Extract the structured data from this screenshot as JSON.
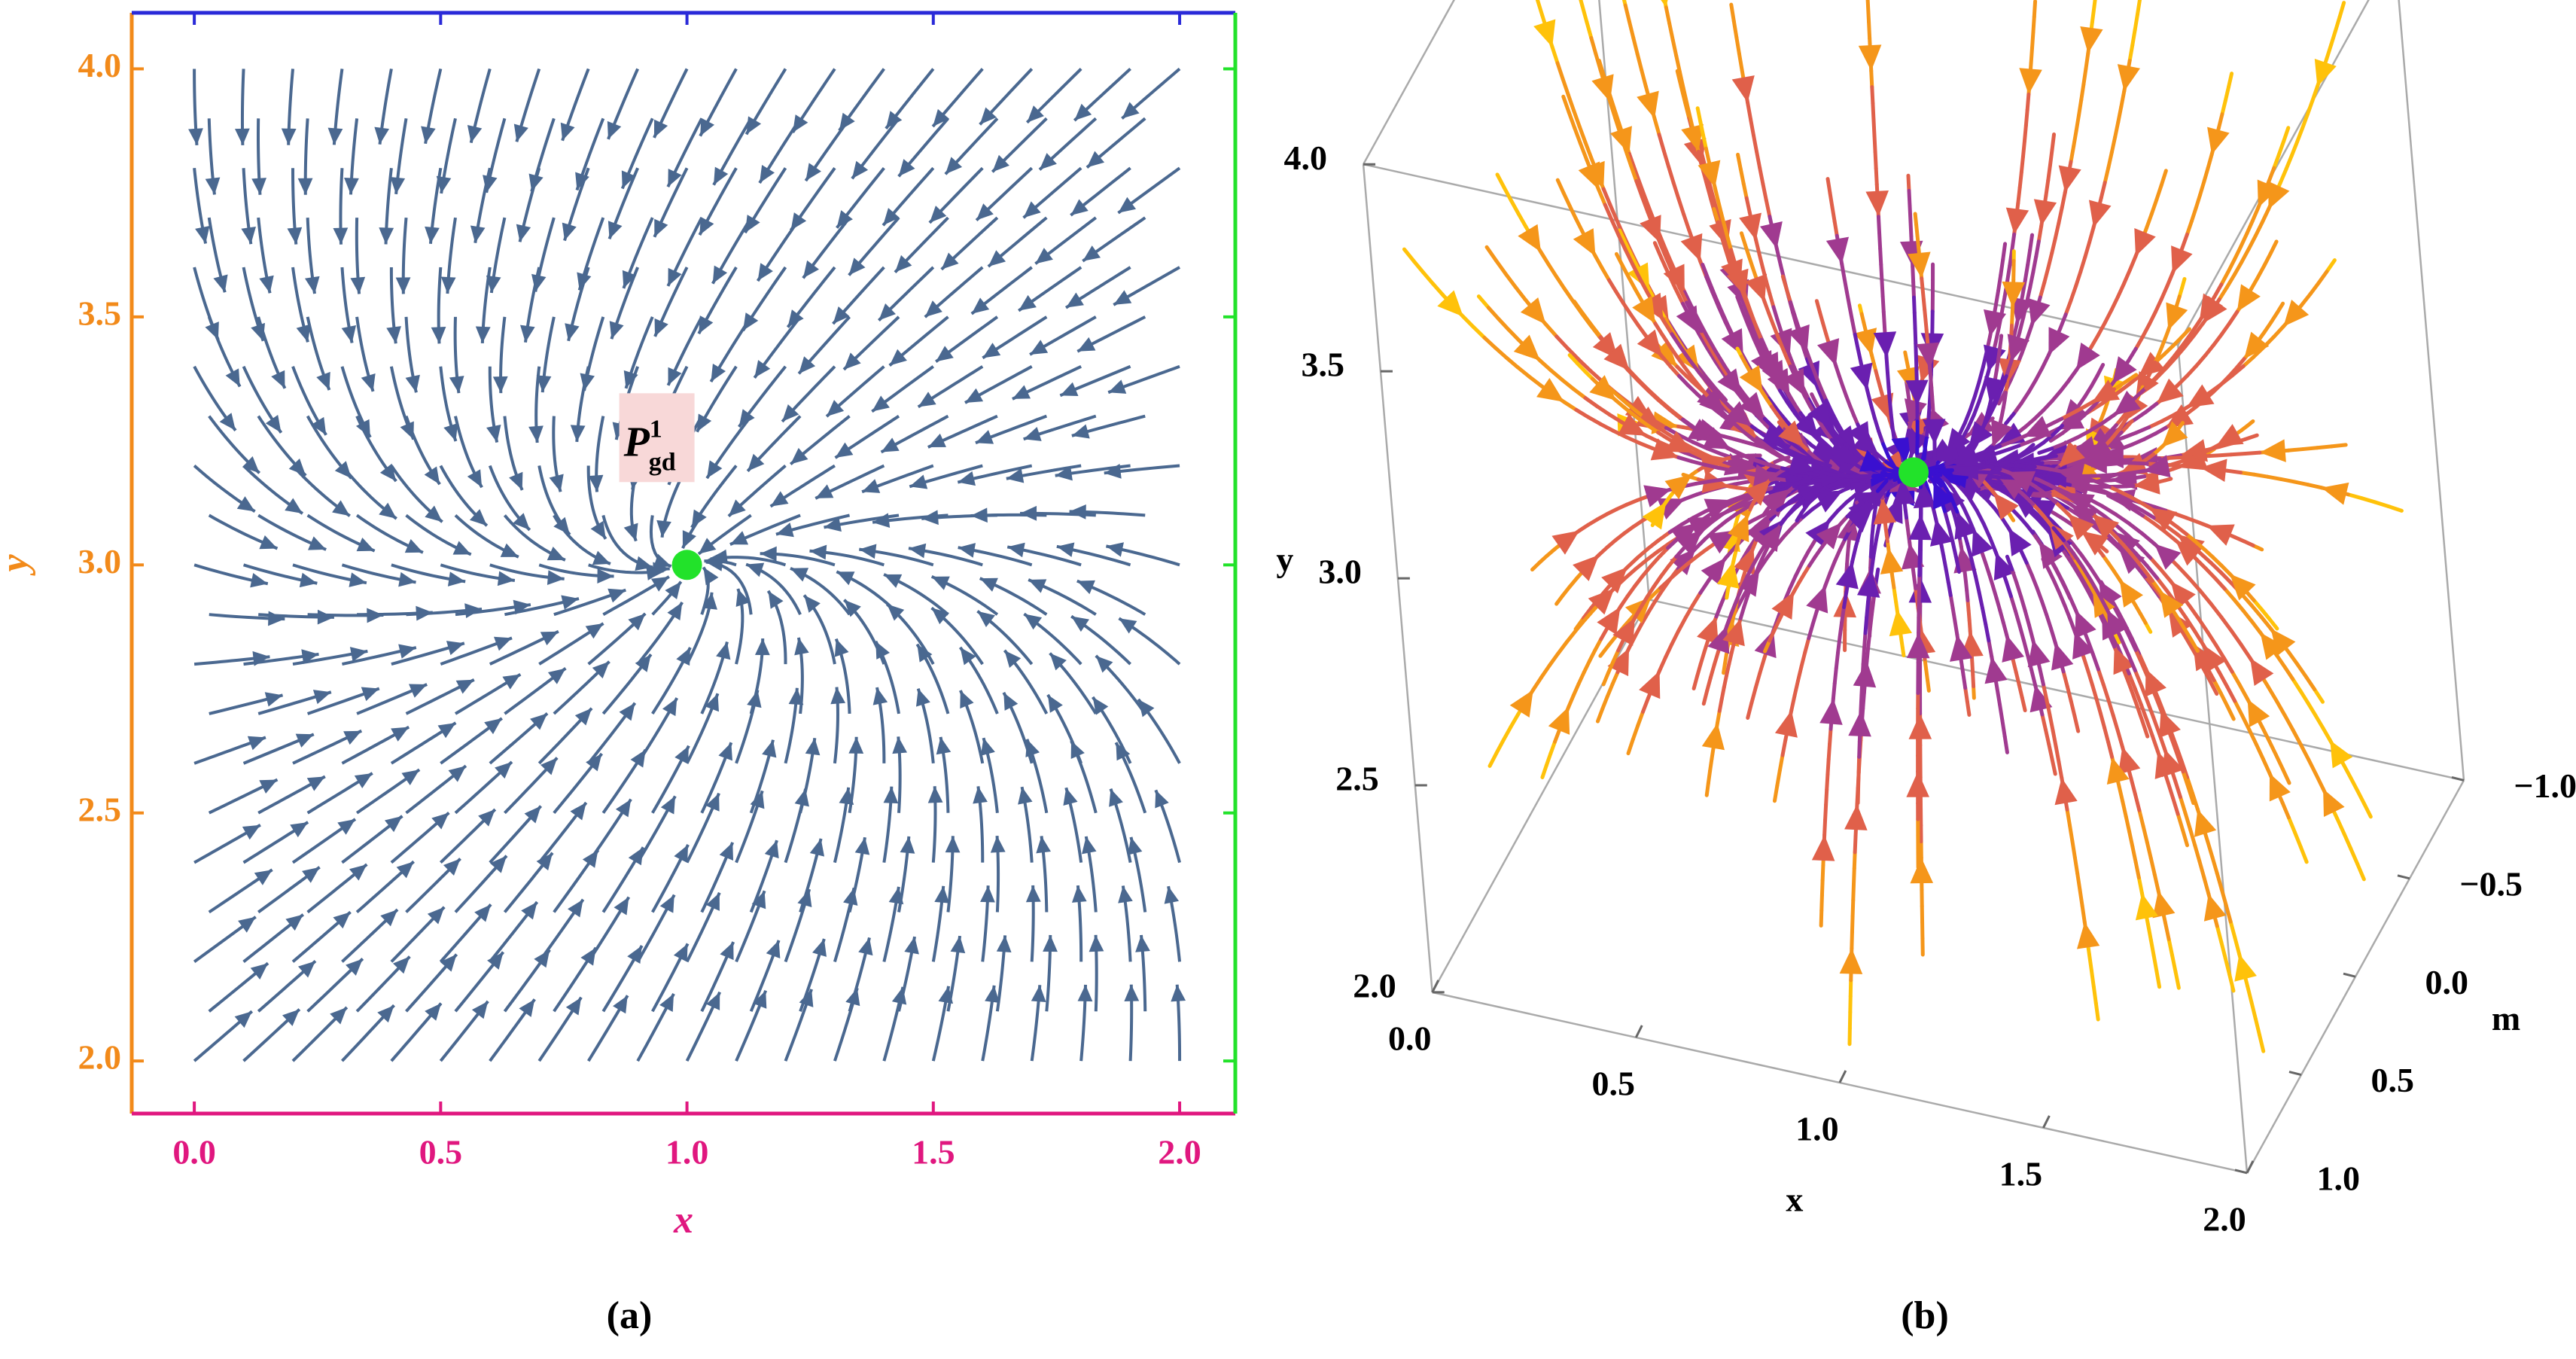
{
  "chart_data": [
    {
      "type": "stream",
      "xlabel": "x",
      "ylabel": "y",
      "xlim": [
        -0.127,
        2.113
      ],
      "ylim": [
        1.894,
        4.113
      ],
      "xticks": [
        {
          "value": 0,
          "label": "0.0"
        },
        {
          "value": 0.5,
          "label": "0.5"
        },
        {
          "value": 1,
          "label": "1.0"
        },
        {
          "value": 1.5,
          "label": "1.5"
        },
        {
          "value": 2,
          "label": "2.0"
        }
      ],
      "yticks": [
        {
          "value": 2,
          "label": "2.0"
        },
        {
          "value": 2.5,
          "label": "2.5"
        },
        {
          "value": 3,
          "label": "3.0"
        },
        {
          "value": 3.5,
          "label": "3.5"
        },
        {
          "value": 4,
          "label": "4.0"
        }
      ],
      "point": {
        "x": 1,
        "y": 3,
        "label": {
          "base": "P",
          "sup": "1",
          "sub": "gd"
        },
        "color": "#22e22a"
      },
      "color": "#4a6890",
      "axis_colors": {
        "left": "#f28a1a",
        "bottom": "#e0177f",
        "top": "#2a2ad8",
        "right": "#22e22a"
      },
      "caption": "(a)"
    },
    {
      "type": "stream3d",
      "xlabel": "x",
      "ylabel": "y",
      "zlabel": "m",
      "xlim": [
        0,
        2
      ],
      "ylim": [
        2,
        4
      ],
      "zlim": [
        -1,
        1
      ],
      "xticks": [
        {
          "value": 0,
          "label": "0.0"
        },
        {
          "value": 0.5,
          "label": "0.5"
        },
        {
          "value": 1,
          "label": "1.0"
        },
        {
          "value": 1.5,
          "label": "1.5"
        },
        {
          "value": 2,
          "label": "2.0"
        }
      ],
      "yticks": [
        {
          "value": 2,
          "label": "2.0"
        },
        {
          "value": 2.5,
          "label": "2.5"
        },
        {
          "value": 3,
          "label": "3.0"
        },
        {
          "value": 3.5,
          "label": "3.5"
        },
        {
          "value": 4,
          "label": "4.0"
        }
      ],
      "zticks": [
        {
          "value": -1,
          "label": "−1.0"
        },
        {
          "value": -0.5,
          "label": "−0.5"
        },
        {
          "value": 0,
          "label": "0.0"
        },
        {
          "value": 0.5,
          "label": "0.5"
        },
        {
          "value": 1,
          "label": "1.0"
        }
      ],
      "point": {
        "x": 1,
        "y": 3,
        "m": 0,
        "color": "#22e22a"
      },
      "colormap": [
        "#ffc20a",
        "#f5961a",
        "#e0604a",
        "#a03a90",
        "#6a1fb0",
        "#3a10d0"
      ],
      "caption": "(b)"
    }
  ]
}
